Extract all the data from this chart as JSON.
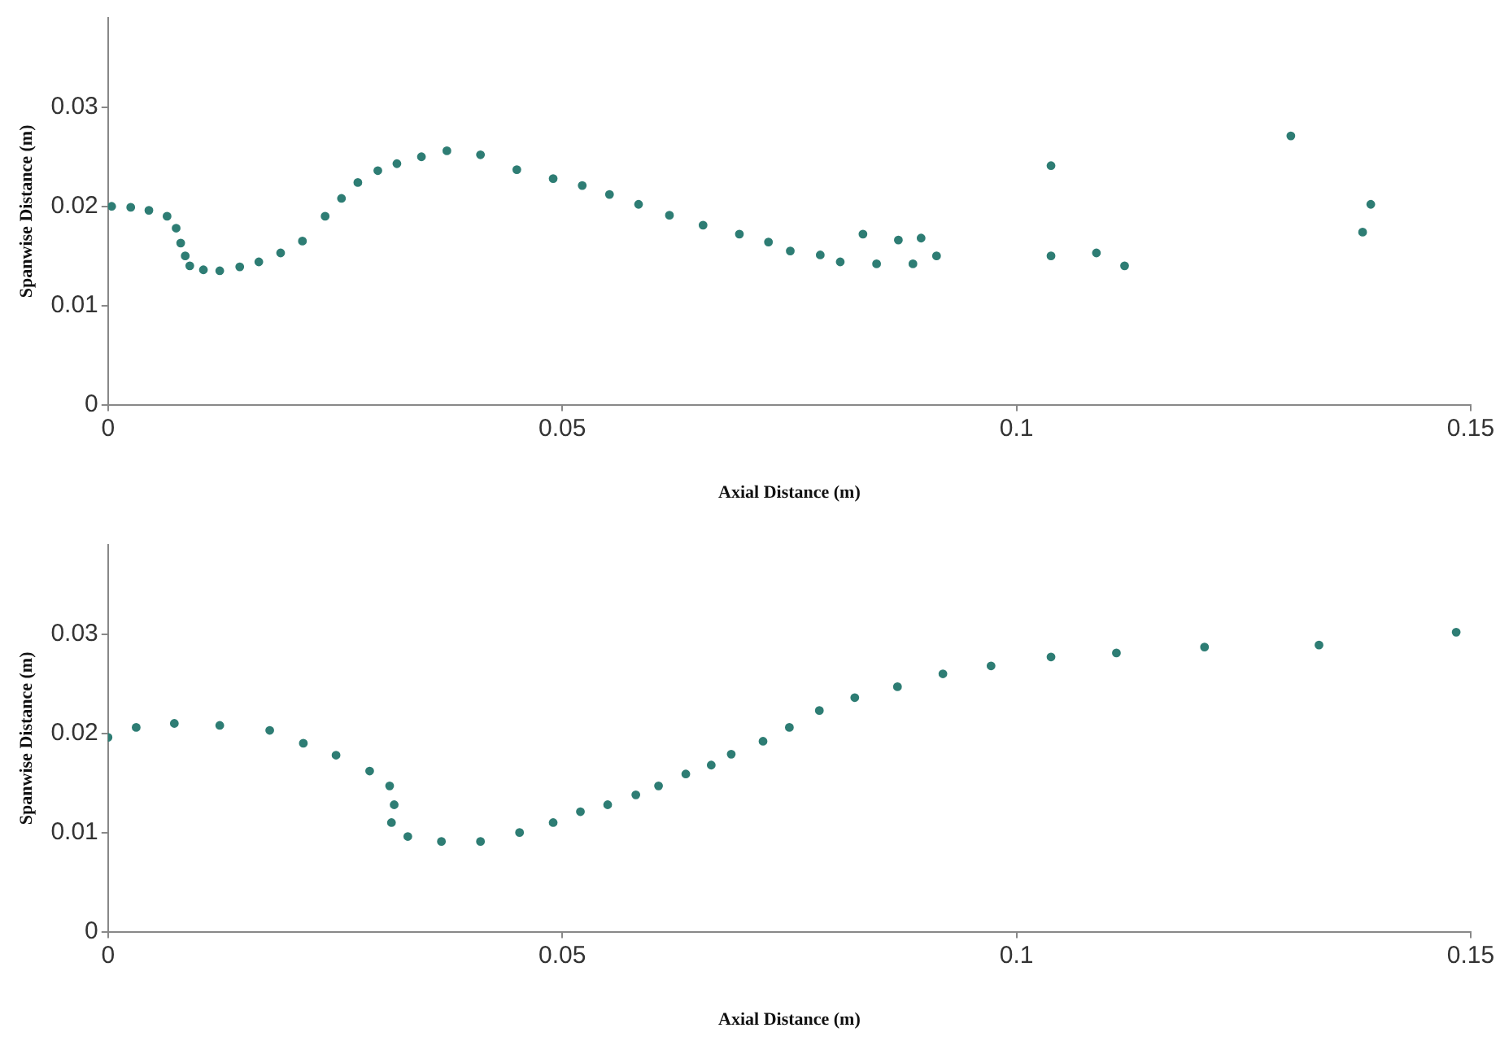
{
  "chart_data": [
    {
      "type": "scatter",
      "xlabel": "Axial Distance (m)",
      "ylabel": "Spanwise Distance (m)",
      "color": "#2e7d74",
      "marker": "circle",
      "grid": false,
      "legend": false,
      "xlim": [
        0,
        0.15
      ],
      "ylim": [
        0,
        0.039
      ],
      "xticks": [
        0,
        0.05,
        0.1,
        0.15
      ],
      "yticks": [
        0,
        0.01,
        0.02,
        0.03
      ],
      "x": [
        0.0004,
        0.0025,
        0.0045,
        0.0065,
        0.0075,
        0.008,
        0.0085,
        0.009,
        0.0105,
        0.0123,
        0.0145,
        0.0166,
        0.019,
        0.0214,
        0.0239,
        0.0257,
        0.0275,
        0.0297,
        0.0318,
        0.0345,
        0.0373,
        0.041,
        0.045,
        0.049,
        0.0522,
        0.0552,
        0.0584,
        0.0618,
        0.0655,
        0.0695,
        0.0727,
        0.0751,
        0.0784,
        0.0806,
        0.0831,
        0.0846,
        0.087,
        0.0886,
        0.0895,
        0.0912,
        0.1038,
        0.1038,
        0.1088,
        0.1119,
        0.1302,
        0.1381,
        0.139
      ],
      "values": [
        0.02,
        0.0199,
        0.0196,
        0.019,
        0.0178,
        0.0163,
        0.015,
        0.014,
        0.0136,
        0.0135,
        0.0139,
        0.0144,
        0.0153,
        0.0165,
        0.019,
        0.0208,
        0.0224,
        0.0236,
        0.0243,
        0.025,
        0.0256,
        0.0252,
        0.0237,
        0.0228,
        0.0221,
        0.0212,
        0.0202,
        0.0191,
        0.0181,
        0.0172,
        0.0164,
        0.0155,
        0.0151,
        0.0144,
        0.0172,
        0.0142,
        0.0166,
        0.0142,
        0.0168,
        0.015,
        0.0241,
        0.015,
        0.0153,
        0.014,
        0.0271,
        0.0174,
        0.0202
      ]
    },
    {
      "type": "scatter",
      "xlabel": "Axial Distance (m)",
      "ylabel": "Spanwise Distance (m)",
      "color": "#2e7d74",
      "marker": "circle",
      "grid": false,
      "legend": false,
      "xlim": [
        0,
        0.15
      ],
      "ylim": [
        0,
        0.039
      ],
      "xticks": [
        0,
        0.05,
        0.1,
        0.15
      ],
      "yticks": [
        0,
        0.01,
        0.02,
        0.03
      ],
      "x": [
        0,
        0.0031,
        0.0073,
        0.0123,
        0.0178,
        0.0215,
        0.0251,
        0.0288,
        0.031,
        0.0315,
        0.0312,
        0.033,
        0.0367,
        0.041,
        0.0453,
        0.049,
        0.052,
        0.055,
        0.0581,
        0.0606,
        0.0636,
        0.0664,
        0.0686,
        0.0721,
        0.075,
        0.0783,
        0.0822,
        0.0869,
        0.0919,
        0.0972,
        0.1038,
        0.111,
        0.1207,
        0.1333,
        0.1484
      ],
      "values": [
        0.0196,
        0.0206,
        0.021,
        0.0208,
        0.0203,
        0.019,
        0.0178,
        0.0162,
        0.0147,
        0.0128,
        0.011,
        0.0096,
        0.0091,
        0.0091,
        0.01,
        0.011,
        0.0121,
        0.0128,
        0.0138,
        0.0147,
        0.0159,
        0.0168,
        0.0179,
        0.0192,
        0.0206,
        0.0223,
        0.0236,
        0.0247,
        0.026,
        0.0268,
        0.0277,
        0.0281,
        0.0287,
        0.0289,
        0.0302
      ]
    }
  ]
}
